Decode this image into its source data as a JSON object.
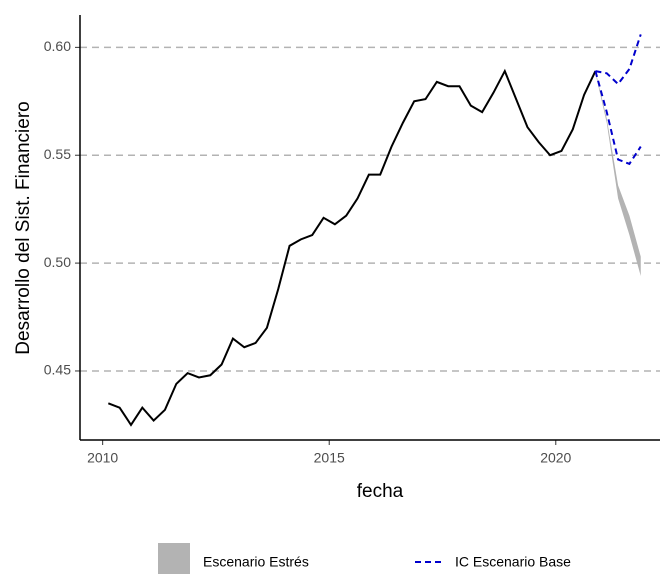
{
  "chart_data": {
    "type": "line",
    "x_label": "fecha",
    "y_label": "Desarrollo del Sist. Financiero",
    "xlim": [
      2009.5,
      2022.3
    ],
    "ylim": [
      0.418,
      0.615
    ],
    "xticks": [
      2010,
      2015,
      2020
    ],
    "yticks": [
      {
        "value": 0.45,
        "label": "0.45"
      },
      {
        "value": 0.5,
        "label": "0.50"
      },
      {
        "value": 0.55,
        "label": "0.55"
      },
      {
        "value": 0.6,
        "label": "0.60"
      }
    ],
    "grid": true,
    "legend": "bottom",
    "line": {
      "color": "#000000",
      "x": [
        2010.125,
        2010.375,
        2010.625,
        2010.875,
        2011.125,
        2011.375,
        2011.625,
        2011.875,
        2012.125,
        2012.375,
        2012.625,
        2012.875,
        2013.125,
        2013.375,
        2013.625,
        2013.875,
        2014.125,
        2014.375,
        2014.625,
        2014.875,
        2015.125,
        2015.375,
        2015.625,
        2015.875,
        2016.125,
        2016.375,
        2016.625,
        2016.875,
        2017.125,
        2017.375,
        2017.625,
        2017.875,
        2018.125,
        2018.375,
        2018.625,
        2018.875,
        2019.125,
        2019.375,
        2019.625,
        2019.875,
        2020.125,
        2020.375,
        2020.625,
        2020.875
      ],
      "values": [
        0.435,
        0.433,
        0.425,
        0.433,
        0.427,
        0.432,
        0.444,
        0.449,
        0.447,
        0.448,
        0.453,
        0.465,
        0.461,
        0.463,
        0.47,
        0.488,
        0.508,
        0.511,
        0.513,
        0.521,
        0.518,
        0.522,
        0.53,
        0.541,
        0.541,
        0.554,
        0.565,
        0.575,
        0.576,
        0.584,
        0.582,
        0.582,
        0.573,
        0.57,
        0.579,
        0.589,
        0.576,
        0.563,
        0.556,
        0.55,
        0.552,
        0.562,
        0.578,
        0.589
      ]
    },
    "stress": {
      "name": "Escenario Estrés",
      "color": "#b3b3b3",
      "x": [
        2020.875,
        2021.125,
        2021.375,
        2021.625,
        2021.875
      ],
      "lower": [
        0.588,
        0.565,
        0.53,
        0.513,
        0.494
      ],
      "upper": [
        0.589,
        0.567,
        0.536,
        0.522,
        0.503
      ]
    },
    "ci": {
      "name": "IC Escenario Base",
      "color": "#0000cc",
      "x": [
        2020.875,
        2021.125,
        2021.375,
        2021.625,
        2021.875
      ],
      "lower": [
        0.589,
        0.57,
        0.548,
        0.546,
        0.554
      ],
      "upper": [
        0.589,
        0.588,
        0.583,
        0.59,
        0.606
      ]
    }
  }
}
